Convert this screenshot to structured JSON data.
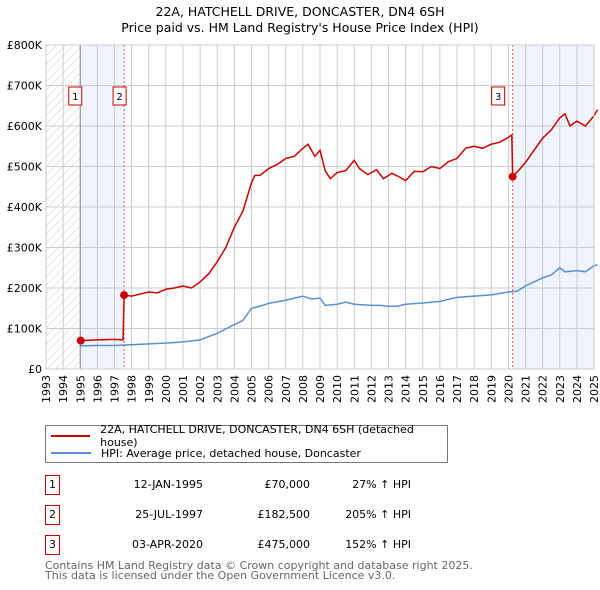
{
  "chart_data": {
    "type": "line",
    "title": "22A, HATCHELL DRIVE, DONCASTER, DN4 6SH",
    "subtitle": "Price paid vs. HM Land Registry's House Price Index (HPI)",
    "xlim": [
      1993,
      2025
    ],
    "ylim": [
      0,
      800000
    ],
    "x_ticks": [
      "1993",
      "1994",
      "1995",
      "1996",
      "1997",
      "1998",
      "1999",
      "2000",
      "2001",
      "2002",
      "2003",
      "2004",
      "2005",
      "2006",
      "2007",
      "2008",
      "2009",
      "2010",
      "2011",
      "2012",
      "2013",
      "2014",
      "2015",
      "2016",
      "2017",
      "2018",
      "2019",
      "2020",
      "2021",
      "2022",
      "2023",
      "2024",
      "2025"
    ],
    "y_ticks": [
      {
        "v": 0,
        "label": "£0"
      },
      {
        "v": 100000,
        "label": "£100K"
      },
      {
        "v": 200000,
        "label": "£200K"
      },
      {
        "v": 300000,
        "label": "£300K"
      },
      {
        "v": 400000,
        "label": "£400K"
      },
      {
        "v": 500000,
        "label": "£500K"
      },
      {
        "v": 600000,
        "label": "£600K"
      },
      {
        "v": 700000,
        "label": "£700K"
      },
      {
        "v": 800000,
        "label": "£800K"
      }
    ],
    "grid": true,
    "series": [
      {
        "name": "22A, HATCHELL DRIVE, DONCASTER, DN4 6SH (detached house)",
        "color": "#cc0000",
        "x": [
          1995.03,
          1996,
          1997,
          1997.5,
          1997.56,
          1998,
          1998.5,
          1999,
          1999.5,
          2000,
          2000.5,
          2001,
          2001.5,
          2002,
          2002.5,
          2003,
          2003.5,
          2004,
          2004.5,
          2005,
          2005.2,
          2005.5,
          2006,
          2006.5,
          2007,
          2007.5,
          2008,
          2008.3,
          2008.7,
          2009,
          2009.3,
          2009.6,
          2010,
          2010.5,
          2011,
          2011.3,
          2011.8,
          2012.3,
          2012.7,
          2013.2,
          2013.6,
          2014,
          2014.5,
          2015,
          2015.5,
          2016,
          2016.5,
          2017,
          2017.5,
          2018,
          2018.5,
          2019,
          2019.5,
          2020,
          2020.2,
          2020.25,
          2020.7,
          2021,
          2021.5,
          2022,
          2022.5,
          2023,
          2023.3,
          2023.6,
          2024,
          2024.5,
          2025,
          2025.2
        ],
        "y": [
          70000,
          72000,
          73000,
          72000,
          182500,
          180000,
          185000,
          190000,
          188000,
          197000,
          200000,
          205000,
          200000,
          215000,
          235000,
          265000,
          300000,
          350000,
          390000,
          460000,
          478000,
          478000,
          495000,
          505000,
          520000,
          525000,
          545000,
          555000,
          525000,
          540000,
          490000,
          470000,
          485000,
          490000,
          515000,
          495000,
          480000,
          492000,
          470000,
          483000,
          475000,
          465000,
          488000,
          487000,
          500000,
          495000,
          512000,
          520000,
          545000,
          550000,
          545000,
          555000,
          560000,
          572000,
          578000,
          475000,
          495000,
          510000,
          540000,
          570000,
          590000,
          620000,
          630000,
          600000,
          612000,
          600000,
          625000,
          640000
        ]
      },
      {
        "name": "HPI: Average price, detached house, Doncaster",
        "color": "#5b8fd4",
        "x": [
          1995,
          1996,
          1997,
          1998,
          1999,
          2000,
          2001,
          2002,
          2003,
          2004,
          2004.5,
          2005,
          2005.5,
          2006,
          2007,
          2008,
          2008.5,
          2009,
          2009.3,
          2010,
          2010.5,
          2011,
          2012,
          2012.5,
          2013,
          2013.5,
          2014,
          2015,
          2016,
          2017,
          2018,
          2019,
          2020,
          2020.5,
          2021,
          2022,
          2022.5,
          2023,
          2023.3,
          2024,
          2024.5,
          2025,
          2025.2
        ],
        "y": [
          57000,
          58000,
          58000,
          60000,
          62000,
          64000,
          67000,
          72000,
          88000,
          110000,
          120000,
          150000,
          155000,
          162000,
          170000,
          180000,
          173000,
          175000,
          157000,
          160000,
          165000,
          160000,
          157000,
          157000,
          155000,
          155000,
          160000,
          163000,
          167000,
          177000,
          180000,
          183000,
          190000,
          192000,
          205000,
          225000,
          232000,
          250000,
          240000,
          243000,
          240000,
          255000,
          257000
        ]
      }
    ],
    "sales": [
      {
        "n": "1",
        "date": "12-JAN-1995",
        "x": 1995.03,
        "price": "£70,000",
        "y": 70000,
        "pct": "27% ↑ HPI"
      },
      {
        "n": "2",
        "date": "25-JUL-1997",
        "x": 1997.56,
        "price": "£182,500",
        "y": 182500,
        "pct": "205% ↑ HPI"
      },
      {
        "n": "3",
        "date": "03-APR-2020",
        "x": 2020.25,
        "price": "£475,000",
        "y": 475000,
        "pct": "152% ↑ HPI"
      }
    ],
    "legend_position": "below"
  },
  "footer": {
    "line1": "Contains HM Land Registry data © Crown copyright and database right 2025.",
    "line2": "This data is licensed under the Open Government Licence v3.0."
  }
}
